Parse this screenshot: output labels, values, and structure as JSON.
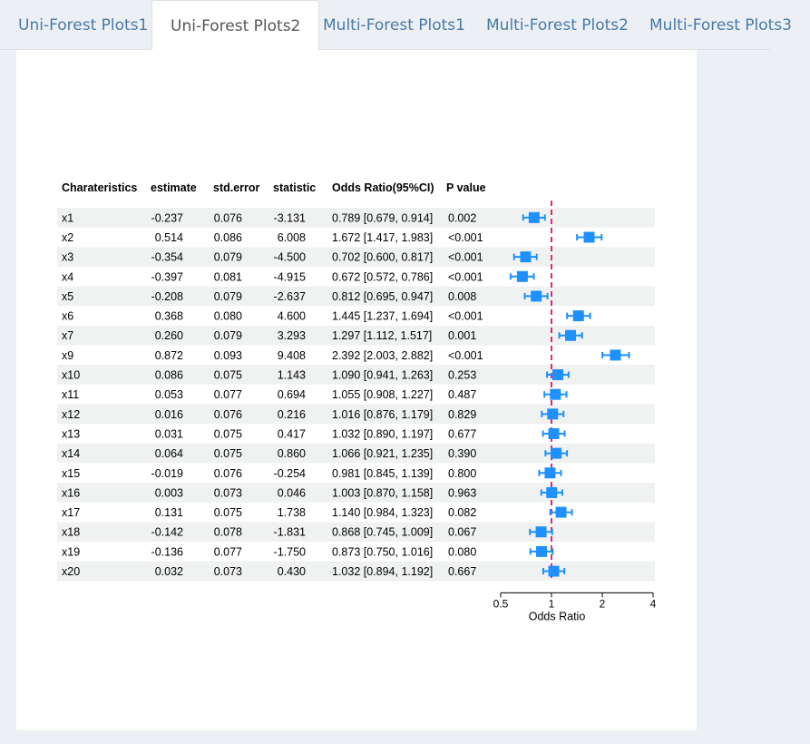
{
  "tabs": [
    {
      "label": "Uni-Forest Plots1",
      "active": false
    },
    {
      "label": "Uni-Forest Plots2",
      "active": true
    },
    {
      "label": "Multi-Forest Plots1",
      "active": false
    },
    {
      "label": "Multi-Forest Plots2",
      "active": false
    },
    {
      "label": "Multi-Forest Plots3",
      "active": false
    }
  ],
  "chart_data": {
    "type": "forest",
    "columns": [
      "Charateristics",
      "estimate",
      "std.error",
      "statistic",
      "Odds Ratio(95%CI)",
      "P value"
    ],
    "rows": [
      {
        "var": "x1",
        "estimate": "-0.237",
        "se": "0.076",
        "stat": "-3.131",
        "or_text": "0.789 [0.679, 0.914]",
        "p": "0.002",
        "or": 0.789,
        "lo": 0.679,
        "hi": 0.914
      },
      {
        "var": "x2",
        "estimate": "0.514",
        "se": "0.086",
        "stat": "6.008",
        "or_text": "1.672 [1.417, 1.983]",
        "p": "<0.001",
        "or": 1.672,
        "lo": 1.417,
        "hi": 1.983
      },
      {
        "var": "x3",
        "estimate": "-0.354",
        "se": "0.079",
        "stat": "-4.500",
        "or_text": "0.702 [0.600, 0.817]",
        "p": "<0.001",
        "or": 0.702,
        "lo": 0.6,
        "hi": 0.817
      },
      {
        "var": "x4",
        "estimate": "-0.397",
        "se": "0.081",
        "stat": "-4.915",
        "or_text": "0.672 [0.572, 0.786]",
        "p": "<0.001",
        "or": 0.672,
        "lo": 0.572,
        "hi": 0.786
      },
      {
        "var": "x5",
        "estimate": "-0.208",
        "se": "0.079",
        "stat": "-2.637",
        "or_text": "0.812 [0.695, 0.947]",
        "p": "0.008",
        "or": 0.812,
        "lo": 0.695,
        "hi": 0.947
      },
      {
        "var": "x6",
        "estimate": "0.368",
        "se": "0.080",
        "stat": "4.600",
        "or_text": "1.445 [1.237, 1.694]",
        "p": "<0.001",
        "or": 1.445,
        "lo": 1.237,
        "hi": 1.694
      },
      {
        "var": "x7",
        "estimate": "0.260",
        "se": "0.079",
        "stat": "3.293",
        "or_text": "1.297 [1.112, 1.517]",
        "p": "0.001",
        "or": 1.297,
        "lo": 1.112,
        "hi": 1.517
      },
      {
        "var": "x9",
        "estimate": "0.872",
        "se": "0.093",
        "stat": "9.408",
        "or_text": "2.392 [2.003, 2.882]",
        "p": "<0.001",
        "or": 2.392,
        "lo": 2.003,
        "hi": 2.882
      },
      {
        "var": "x10",
        "estimate": "0.086",
        "se": "0.075",
        "stat": "1.143",
        "or_text": "1.090 [0.941, 1.263]",
        "p": "0.253",
        "or": 1.09,
        "lo": 0.941,
        "hi": 1.263
      },
      {
        "var": "x11",
        "estimate": "0.053",
        "se": "0.077",
        "stat": "0.694",
        "or_text": "1.055 [0.908, 1.227]",
        "p": "0.487",
        "or": 1.055,
        "lo": 0.908,
        "hi": 1.227
      },
      {
        "var": "x12",
        "estimate": "0.016",
        "se": "0.076",
        "stat": "0.216",
        "or_text": "1.016 [0.876, 1.179]",
        "p": "0.829",
        "or": 1.016,
        "lo": 0.876,
        "hi": 1.179
      },
      {
        "var": "x13",
        "estimate": "0.031",
        "se": "0.075",
        "stat": "0.417",
        "or_text": "1.032 [0.890, 1.197]",
        "p": "0.677",
        "or": 1.032,
        "lo": 0.89,
        "hi": 1.197
      },
      {
        "var": "x14",
        "estimate": "0.064",
        "se": "0.075",
        "stat": "0.860",
        "or_text": "1.066 [0.921, 1.235]",
        "p": "0.390",
        "or": 1.066,
        "lo": 0.921,
        "hi": 1.235
      },
      {
        "var": "x15",
        "estimate": "-0.019",
        "se": "0.076",
        "stat": "-0.254",
        "or_text": "0.981 [0.845, 1.139]",
        "p": "0.800",
        "or": 0.981,
        "lo": 0.845,
        "hi": 1.139
      },
      {
        "var": "x16",
        "estimate": "0.003",
        "se": "0.073",
        "stat": "0.046",
        "or_text": "1.003 [0.870, 1.158]",
        "p": "0.963",
        "or": 1.003,
        "lo": 0.87,
        "hi": 1.158
      },
      {
        "var": "x17",
        "estimate": "0.131",
        "se": "0.075",
        "stat": "1.738",
        "or_text": "1.140 [0.984, 1.323]",
        "p": "0.082",
        "or": 1.14,
        "lo": 0.984,
        "hi": 1.323
      },
      {
        "var": "x18",
        "estimate": "-0.142",
        "se": "0.078",
        "stat": "-1.831",
        "or_text": "0.868 [0.745, 1.009]",
        "p": "0.067",
        "or": 0.868,
        "lo": 0.745,
        "hi": 1.009
      },
      {
        "var": "x19",
        "estimate": "-0.136",
        "se": "0.077",
        "stat": "-1.750",
        "or_text": "0.873 [0.750, 1.016]",
        "p": "0.080",
        "or": 0.873,
        "lo": 0.75,
        "hi": 1.016
      },
      {
        "var": "x20",
        "estimate": "0.032",
        "se": "0.073",
        "stat": "0.430",
        "or_text": "1.032 [0.894, 1.192]",
        "p": "0.667",
        "or": 1.032,
        "lo": 0.894,
        "hi": 1.192
      }
    ],
    "x_axis": {
      "label": "Odds Ratio",
      "ticks": [
        0.5,
        1,
        2,
        4
      ],
      "tick_labels": [
        "0.5",
        "1",
        "2",
        "4"
      ],
      "scale": "log",
      "range": [
        0.5,
        4
      ]
    },
    "reference_line": 1,
    "colors": {
      "point": "#1e90ff",
      "ref_line": "#e0287a",
      "stripe": "#eff2f1"
    }
  }
}
